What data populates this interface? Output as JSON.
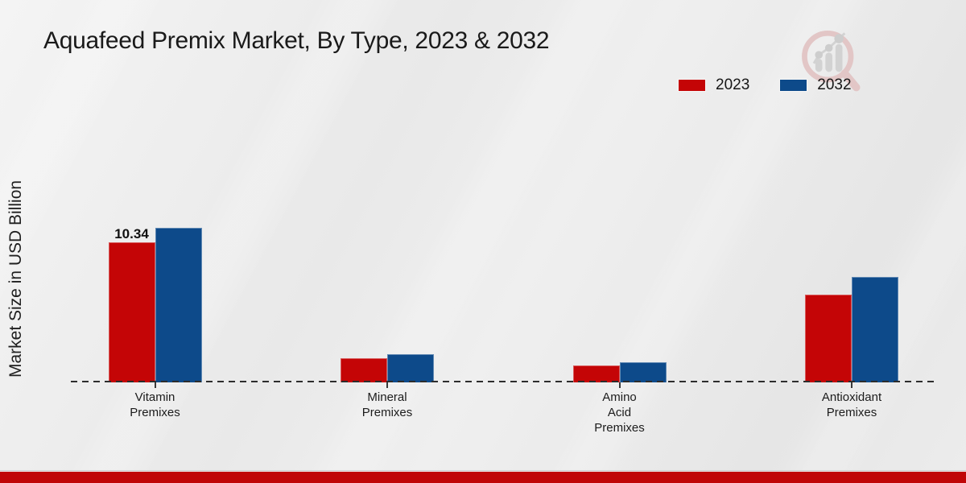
{
  "title": "Aquafeed Premix Market, By Type, 2023 & 2032",
  "y_axis_label": "Market Size in USD Billion",
  "legend": {
    "items": [
      {
        "label": "2023",
        "color": "#c40506"
      },
      {
        "label": "2032",
        "color": "#0d4a8a"
      }
    ],
    "position": "top-right"
  },
  "chart_data": {
    "type": "bar",
    "title": "Aquafeed Premix Market, By Type, 2023 & 2032",
    "xlabel": "",
    "ylabel": "Market Size in USD Billion",
    "categories": [
      "Vitamin Premixes",
      "Mineral Premixes",
      "Amino Acid Premixes",
      "Antioxidant Premixes"
    ],
    "category_lines": [
      [
        "Vitamin",
        "Premixes"
      ],
      [
        "Mineral",
        "Premixes"
      ],
      [
        "Amino",
        "Acid",
        "Premixes"
      ],
      [
        "Antioxidant",
        "Premixes"
      ]
    ],
    "series": [
      {
        "name": "2023",
        "color": "#c40506",
        "values": [
          10.34,
          1.8,
          1.25,
          6.5
        ],
        "point_labels": [
          "10.34",
          "",
          "",
          ""
        ]
      },
      {
        "name": "2032",
        "color": "#0d4a8a",
        "values": [
          11.4,
          2.1,
          1.5,
          7.8
        ],
        "point_labels": [
          "",
          "",
          "",
          ""
        ]
      }
    ],
    "ylim": [
      0,
      12
    ],
    "y_axis_ticks_visible": false,
    "grid": false,
    "baseline_style": "dashed",
    "legend_position": "top-right"
  },
  "watermark": {
    "name": "magnifier-bar-chart-logo",
    "ring_color": "#e2c6c6",
    "glyph_color": "#d2d2d2"
  },
  "footer": {
    "band_color": "#c00607"
  }
}
